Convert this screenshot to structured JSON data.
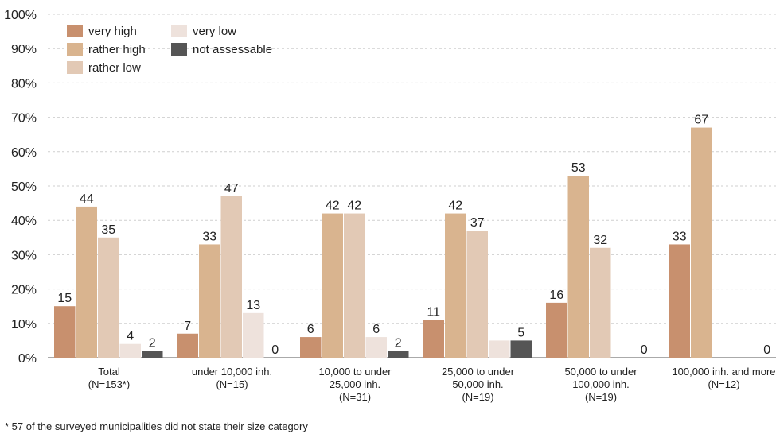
{
  "chart_data": {
    "type": "bar",
    "categories": [
      [
        "Total",
        "(N=153*)"
      ],
      [
        "under 10,000 inh.",
        "(N=15)"
      ],
      [
        "10,000 to under",
        "25,000 inh.",
        "(N=31)"
      ],
      [
        "25,000 to under",
        "50,000 inh.",
        "(N=19)"
      ],
      [
        "50,000 to under",
        "100,000 inh.",
        "(N=19)"
      ],
      [
        "100,000 inh. and more",
        "(N=12)"
      ]
    ],
    "series": [
      {
        "name": "very high",
        "color": "#c8906e",
        "values": [
          15,
          7,
          6,
          11,
          16,
          33
        ]
      },
      {
        "name": "rather high",
        "color": "#d9b48f",
        "values": [
          44,
          33,
          42,
          42,
          53,
          67
        ]
      },
      {
        "name": "rather low",
        "color": "#e2c9b5",
        "values": [
          35,
          47,
          42,
          37,
          32,
          0
        ]
      },
      {
        "name": "very low",
        "color": "#eee2dc",
        "values": [
          4,
          13,
          6,
          5,
          0,
          0
        ]
      },
      {
        "name": "not assessable",
        "color": "#555555",
        "values": [
          2,
          0,
          2,
          5,
          0,
          0
        ]
      }
    ],
    "data_labels": [
      [
        "15",
        "44",
        "35",
        "4",
        "2"
      ],
      [
        "7",
        "33",
        "47",
        "13",
        "0"
      ],
      [
        "6",
        "42",
        "42",
        "6",
        "2"
      ],
      [
        "11",
        "42",
        "37",
        "",
        "5"
      ],
      [
        "16",
        "53",
        "32",
        "",
        "0"
      ],
      [
        "33",
        "67",
        "",
        "",
        "0"
      ]
    ],
    "ylim": [
      0,
      100
    ],
    "y_ticks": [
      "0%",
      "10%",
      "20%",
      "30%",
      "40%",
      "50%",
      "60%",
      "70%",
      "80%",
      "90%",
      "100%"
    ],
    "grid": "horizontal dashed",
    "legend": "top-left",
    "xlabel": "",
    "ylabel": ""
  },
  "footnote": "* 57 of the surveyed municipalities did not state their size category"
}
